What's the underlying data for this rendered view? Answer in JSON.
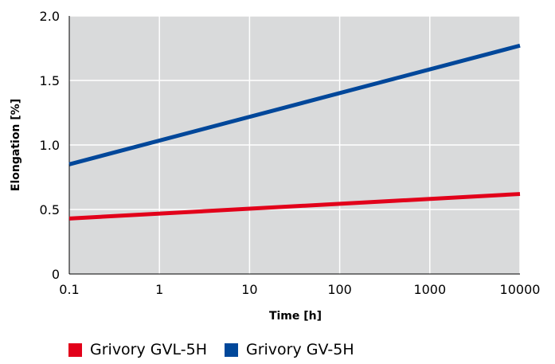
{
  "chart_data": {
    "type": "line",
    "xscale": "log",
    "x_ticks": [
      "0.1",
      "1",
      "10",
      "100",
      "1000",
      "10000"
    ],
    "x_tick_values": [
      0.1,
      1,
      10,
      100,
      1000,
      10000
    ],
    "y_ticks": [
      "0",
      "0.5",
      "1.0",
      "1.5",
      "2.0"
    ],
    "y_tick_values": [
      0,
      0.5,
      1.0,
      1.5,
      2.0
    ],
    "xlim": [
      0.1,
      10000
    ],
    "ylim": [
      0,
      2.0
    ],
    "xlabel": "Time [h]",
    "ylabel": "Elongation [%]",
    "grid": true,
    "legend_position": "bottom",
    "series": [
      {
        "name": "Grivory GVL-5H",
        "color": "#e2001a",
        "x": [
          0.1,
          10000
        ],
        "y": [
          0.43,
          0.62
        ]
      },
      {
        "name": "Grivory GV-5H",
        "color": "#00479a",
        "x": [
          0.1,
          10000
        ],
        "y": [
          0.85,
          1.77
        ]
      }
    ]
  },
  "colors": {
    "plot_background": "#d9dadb",
    "grid": "#ffffff"
  }
}
